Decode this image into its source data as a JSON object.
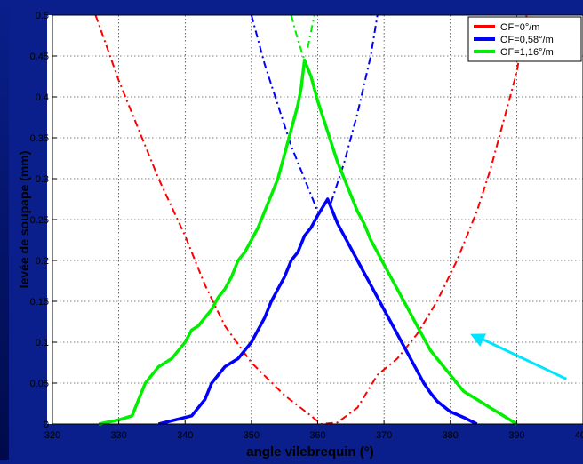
{
  "chart_data": {
    "type": "line",
    "xlabel": "angle vilebrequin (°)",
    "ylabel": "levée de soupape (mm)",
    "xlim": [
      320,
      400
    ],
    "ylim": [
      0,
      0.5
    ],
    "grid": true,
    "legend_position": "top-right",
    "xticks": [
      "320",
      "330",
      "340",
      "350",
      "360",
      "370",
      "380",
      "390",
      "400"
    ],
    "yticks": [
      "0",
      "0.05",
      "0.1",
      "0.15",
      "0.2",
      "0.25",
      "0.3",
      "0.35",
      "0.4",
      "0.45",
      "0.5"
    ],
    "series": [
      {
        "name": "OF=0°/m",
        "color": "#ff0000",
        "curves": [
          {
            "style": "dashdot",
            "points": [
              [
                326.5,
                0.5
              ],
              [
                330,
                0.42
              ],
              [
                333,
                0.36
              ],
              [
                336,
                0.3
              ],
              [
                340,
                0.23
              ],
              [
                343,
                0.17
              ],
              [
                346,
                0.12
              ],
              [
                350,
                0.075
              ],
              [
                355,
                0.035
              ],
              [
                359,
                0.01
              ],
              [
                360.5,
                0.0
              ],
              [
                363,
                0.002
              ],
              [
                366,
                0.02
              ],
              [
                369,
                0.06
              ],
              [
                372,
                0.08
              ],
              [
                375,
                0.11
              ],
              [
                378,
                0.15
              ],
              [
                381,
                0.2
              ],
              [
                384,
                0.26
              ],
              [
                386,
                0.31
              ],
              [
                388,
                0.37
              ],
              [
                390,
                0.43
              ],
              [
                391.5,
                0.5
              ]
            ]
          }
        ]
      },
      {
        "name": "OF=0,58°/m",
        "color": "#0000ff",
        "curves": [
          {
            "style": "solid",
            "points": [
              [
                336,
                0
              ],
              [
                341,
                0.01
              ],
              [
                343,
                0.03
              ],
              [
                344,
                0.05
              ],
              [
                346,
                0.07
              ],
              [
                348,
                0.08
              ],
              [
                349,
                0.09
              ],
              [
                350,
                0.1
              ],
              [
                351,
                0.115
              ],
              [
                352,
                0.13
              ],
              [
                353,
                0.15
              ],
              [
                354,
                0.165
              ],
              [
                355,
                0.18
              ],
              [
                356,
                0.2
              ],
              [
                357,
                0.21
              ],
              [
                358,
                0.23
              ],
              [
                359,
                0.24
              ],
              [
                360,
                0.255
              ],
              [
                361.5,
                0.275
              ],
              [
                363,
                0.245
              ],
              [
                364,
                0.23
              ],
              [
                365,
                0.215
              ],
              [
                366,
                0.2
              ],
              [
                367,
                0.185
              ],
              [
                368,
                0.17
              ],
              [
                369,
                0.155
              ],
              [
                370,
                0.14
              ],
              [
                371,
                0.125
              ],
              [
                372,
                0.11
              ],
              [
                373,
                0.095
              ],
              [
                374,
                0.08
              ],
              [
                375,
                0.065
              ],
              [
                376,
                0.05
              ],
              [
                377,
                0.038
              ],
              [
                378,
                0.028
              ],
              [
                380,
                0.015
              ],
              [
                382,
                0.008
              ],
              [
                384,
                0
              ]
            ]
          },
          {
            "style": "dashdot",
            "points": [
              [
                350,
                0.5
              ],
              [
                352,
                0.44
              ],
              [
                354,
                0.39
              ],
              [
                356,
                0.34
              ],
              [
                358,
                0.3
              ],
              [
                360,
                0.26
              ]
            ]
          },
          {
            "style": "dashdot",
            "points": [
              [
                362,
                0.27
              ],
              [
                364,
                0.32
              ],
              [
                366,
                0.38
              ],
              [
                368,
                0.45
              ],
              [
                369,
                0.5
              ]
            ]
          }
        ]
      },
      {
        "name": "OF=1,16°/m",
        "color": "#00ee00",
        "curves": [
          {
            "style": "solid",
            "points": [
              [
                327,
                0
              ],
              [
                330,
                0.005
              ],
              [
                332,
                0.01
              ],
              [
                333,
                0.03
              ],
              [
                334,
                0.05
              ],
              [
                335,
                0.06
              ],
              [
                336,
                0.07
              ],
              [
                338,
                0.08
              ],
              [
                339,
                0.09
              ],
              [
                340,
                0.1
              ],
              [
                341,
                0.115
              ],
              [
                342,
                0.12
              ],
              [
                343,
                0.13
              ],
              [
                344,
                0.14
              ],
              [
                345,
                0.155
              ],
              [
                346,
                0.165
              ],
              [
                347,
                0.18
              ],
              [
                348,
                0.2
              ],
              [
                349,
                0.21
              ],
              [
                350,
                0.225
              ],
              [
                351,
                0.24
              ],
              [
                352,
                0.26
              ],
              [
                353,
                0.28
              ],
              [
                354,
                0.3
              ],
              [
                355,
                0.33
              ],
              [
                356,
                0.36
              ],
              [
                357,
                0.39
              ],
              [
                357.5,
                0.41
              ],
              [
                358,
                0.445
              ],
              [
                359,
                0.425
              ],
              [
                360,
                0.395
              ],
              [
                361,
                0.37
              ],
              [
                362,
                0.345
              ],
              [
                363,
                0.32
              ],
              [
                364,
                0.3
              ],
              [
                365,
                0.28
              ],
              [
                366,
                0.26
              ],
              [
                367,
                0.245
              ],
              [
                368,
                0.225
              ],
              [
                369,
                0.21
              ],
              [
                370,
                0.195
              ],
              [
                371,
                0.18
              ],
              [
                372,
                0.165
              ],
              [
                373,
                0.15
              ],
              [
                374,
                0.135
              ],
              [
                375,
                0.12
              ],
              [
                376,
                0.105
              ],
              [
                377,
                0.09
              ],
              [
                378,
                0.08
              ],
              [
                380,
                0.06
              ],
              [
                382,
                0.04
              ],
              [
                384,
                0.03
              ],
              [
                386,
                0.02
              ],
              [
                388,
                0.01
              ],
              [
                390,
                0
              ]
            ]
          },
          {
            "style": "dashdot",
            "points": [
              [
                356,
                0.5
              ],
              [
                357,
                0.47
              ],
              [
                358,
                0.445
              ]
            ]
          },
          {
            "style": "dashdot",
            "points": [
              [
                358.5,
                0.46
              ],
              [
                359.5,
                0.5
              ]
            ]
          }
        ]
      }
    ],
    "annotation_arrow": {
      "color": "#00e5ff",
      "from": [
        397.5,
        0.055
      ],
      "to": [
        383,
        0.11
      ]
    }
  }
}
